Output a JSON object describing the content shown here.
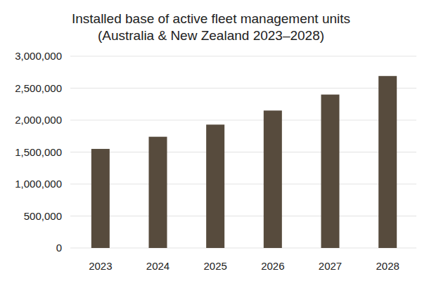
{
  "chart_data": {
    "type": "bar",
    "title": "Installed base of active fleet management units",
    "subtitle": "(Australia & New Zealand 2023–2028)",
    "categories": [
      "2023",
      "2024",
      "2025",
      "2026",
      "2027",
      "2028"
    ],
    "values": [
      1550000,
      1740000,
      1930000,
      2150000,
      2400000,
      2690000
    ],
    "color": "#574b3d",
    "ylim": [
      0,
      3000000
    ],
    "yticks": [
      0,
      {
        "value": 500000,
        "label": "500,000"
      },
      {
        "value": 1000000,
        "label": "1,000,000"
      },
      {
        "value": 1500000,
        "label": "1,500,000"
      },
      {
        "value": 2000000,
        "label": "2,000,000"
      },
      {
        "value": 2500000,
        "label": "2,500,000"
      },
      {
        "value": 3000000,
        "label": "3,000,000"
      }
    ],
    "grid": true
  }
}
